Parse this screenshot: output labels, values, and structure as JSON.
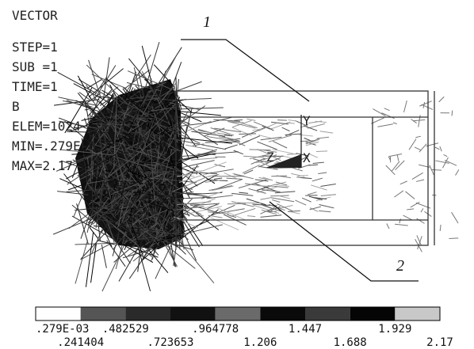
{
  "header": {
    "lines": [
      "VECTOR",
      "STEP=1",
      "SUB =1",
      "TIME=1",
      "B",
      "ELEM=1024",
      "MIN=.279E-03",
      "MAX=2.17"
    ]
  },
  "callouts": [
    "1",
    "2"
  ],
  "triad": {
    "y": "Y",
    "z": "Z",
    "x": "X"
  },
  "legend": {
    "colors": [
      "#ffffff",
      "#555555",
      "#2a2a2a",
      "#111111",
      "#6a6a6a",
      "#0a0a0a",
      "#3a3a3a",
      "#050505",
      "#c8c8c8"
    ],
    "labels_top": [
      ".279E-03",
      ".482529",
      ".964778",
      "1.447",
      "1.929"
    ],
    "labels_bottom": [
      ".241404",
      ".723653",
      "1.206",
      "1.688",
      "2.17"
    ]
  }
}
